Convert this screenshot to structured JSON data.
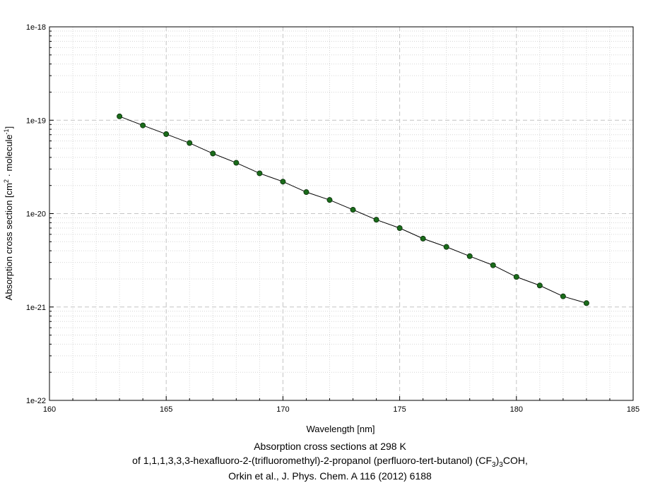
{
  "chart_data": {
    "type": "line",
    "title_lines": [
      "Absorption cross sections at 298 K",
      "of 1,1,1,3,3,3-hexafluoro-2-(trifluoromethyl)-2-propanol (perfluoro-tert-butanol) (CF",
      "3",
      ")",
      "3",
      "COH,",
      "Orkin et al., J. Phys. Chem. A 116 (2012) 6188"
    ],
    "xlabel": "Wavelength [nm]",
    "ylabel_parts": [
      "Absorption cross section [cm",
      "2",
      " · molecule",
      "-1",
      "]"
    ],
    "x_scale": "linear",
    "y_scale": "log",
    "xlim": [
      160,
      185
    ],
    "ylim": [
      1e-22,
      1e-18
    ],
    "x_ticks": [
      160,
      165,
      170,
      175,
      180,
      185
    ],
    "x_tick_labels": [
      "160",
      "165",
      "170",
      "175",
      "180",
      "185"
    ],
    "y_ticks": [
      1e-22,
      1e-21,
      1e-20,
      1e-19,
      1e-18
    ],
    "y_tick_labels": [
      "1e-22",
      "1e-21",
      "1e-20",
      "1e-19",
      "1e-18"
    ],
    "grid": true,
    "series": [
      {
        "x": [
          163,
          164,
          165,
          166,
          167,
          168,
          169,
          170,
          171,
          172,
          173,
          174,
          175,
          176,
          177,
          178,
          179,
          180,
          181,
          182,
          183
        ],
        "y": [
          1.1e-19,
          8.8e-20,
          7.1e-20,
          5.7e-20,
          4.4e-20,
          3.5e-20,
          2.7e-20,
          2.2e-20,
          1.7e-20,
          1.4e-20,
          1.1e-20,
          8.6e-21,
          7e-21,
          5.4e-21,
          4.4e-21,
          3.5e-21,
          2.8e-21,
          2.1e-21,
          1.7e-21,
          1.3e-21,
          1.1e-21
        ],
        "line_color": "#000000",
        "marker_color": "#1a6b1a",
        "marker": "circle"
      }
    ]
  }
}
